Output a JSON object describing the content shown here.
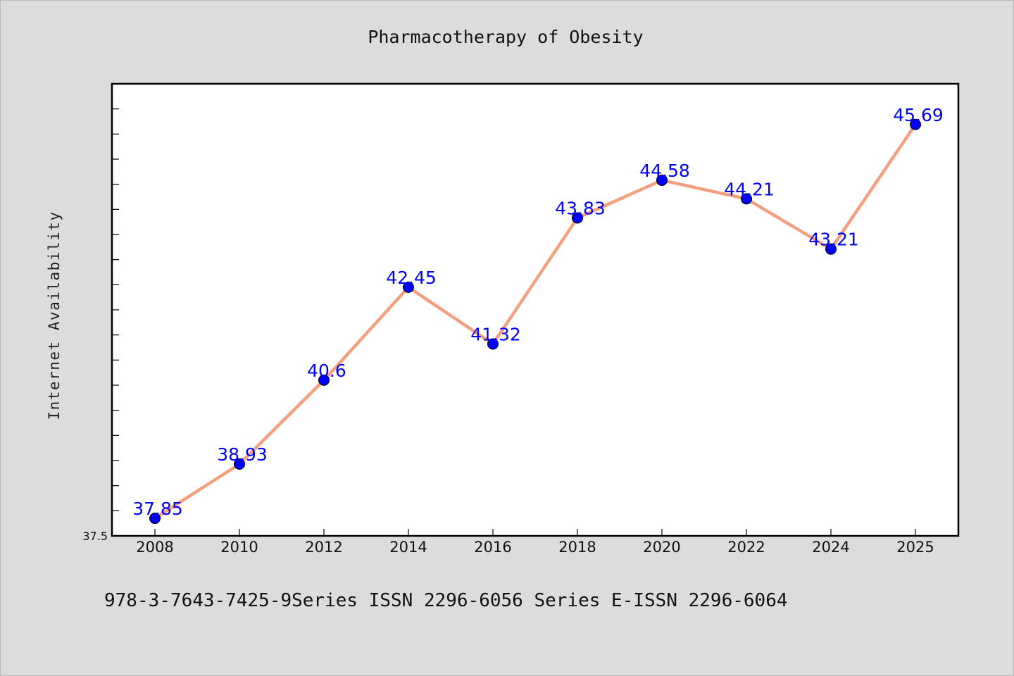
{
  "chart_data": {
    "type": "line",
    "title": "Pharmacotherapy of Obesity",
    "ylabel": "Internet Availability",
    "xlabel": "",
    "categories": [
      "2008",
      "2010",
      "2012",
      "2014",
      "2016",
      "2018",
      "2020",
      "2022",
      "2024",
      "2025"
    ],
    "series": [
      {
        "values": [
          37.85,
          38.93,
          40.6,
          42.45,
          41.32,
          43.83,
          44.58,
          44.21,
          43.21,
          45.69
        ],
        "labels": [
          "37.85",
          "38.93",
          "40.6",
          "42.45",
          "41.32",
          "43.83",
          "44.58",
          "44.21",
          "43.21",
          "45.69"
        ],
        "line_color": "#f4a07e",
        "marker_color": "#0000ff"
      }
    ],
    "ylim": [
      37.5,
      46.5
    ],
    "yticks_labeled": [
      "37.5"
    ],
    "grid": false,
    "legend": "none"
  },
  "footer": "978-3-7643-7425-9Series ISSN 2296-6056 Series E-ISSN 2296-6064"
}
